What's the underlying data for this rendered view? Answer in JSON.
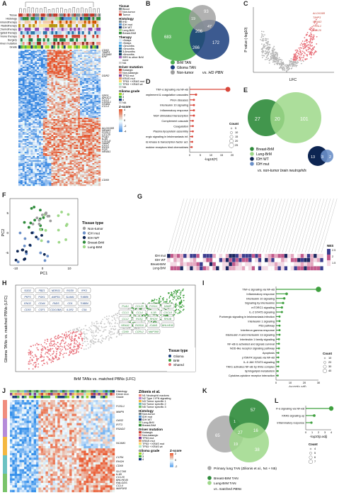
{
  "panels": {
    "A": "A",
    "B": "B",
    "C": "C",
    "D": "D",
    "E": "E",
    "F": "F",
    "G": "G",
    "H": "H",
    "I": "I",
    "J": "J",
    "K": "K",
    "L": "L"
  },
  "panelA": {
    "annotation_rows": [
      "Tissue",
      "Histology",
      "Immunotherapy",
      "Radiotherapy",
      "Chemotherapy",
      "Targeted therapy",
      "Hormone therapy",
      "Surgery",
      "Driver mutation",
      "Grade"
    ],
    "legend": {
      "tissue_title": "Tissue",
      "tissue": [
        "Blood",
        "Non-tumor",
        "Tumor"
      ],
      "histology_title": "Histology",
      "histology": [
        "IHD",
        "IDH mut",
        "IDH WT",
        "Lung-BrM",
        "Breast-BrM"
      ],
      "therapy_title": "Therapy",
      "therapy": [
        "<5days",
        ">5days",
        "<3months",
        ">3months",
        "3-6months",
        ">6months",
        "SRS to other BrM",
        "none",
        "NA"
      ],
      "driver_title": "Driver mutation",
      "driver": [
        "Kataegic",
        "Non-kataegic",
        "TP53 mut",
        "KRAS mut",
        "TP53 + KRAS mut",
        "TP53 + KRAS wt",
        "NA"
      ],
      "grade_title": "Glioma grade",
      "grade": [
        "2",
        "3",
        "4",
        "NA"
      ],
      "z_title": "Z-score",
      "z_ticks": [
        "4",
        "2",
        "0",
        "-2",
        "-4"
      ]
    },
    "genes": [
      "CD63",
      "TIMP3",
      "S100A8",
      "EHF",
      "DDR2",
      "SPP1",
      "APOC2",
      "CCL3",
      "CHI3L1",
      "STAB1",
      "CCL4",
      "ALOX15B",
      "NR4A3",
      "FOSL1",
      "CCL20",
      "PLAU",
      "IL1B",
      "CXCL8",
      "HAMP",
      "CCL2",
      "RGS1",
      "FOS",
      "NR4A1",
      "CD69"
    ]
  },
  "panelB": {
    "sets": [
      "BrM TAN",
      "Glioma TAN",
      "Non-tumor"
    ],
    "counts": {
      "brm_only": "683",
      "glioma_only": "172",
      "non_only": "93",
      "brm_non": "19",
      "non_glioma": "47",
      "brm_glioma": "266",
      "all": "206"
    },
    "caption": "vs. HD PBN"
  },
  "panelC": {
    "xlabel": "LFC",
    "ylabel": "P value (-log10)",
    "genes": [
      "ALOX15B",
      "TIMP3",
      "NR4A3",
      "FOSL1",
      "CCL20"
    ]
  },
  "panelD": {
    "terms": [
      "TNF-α signaling via NF-κB",
      "Complement & coagulation cascades",
      "Prion diseases",
      "Interleukin 10 signaling",
      "Inflammatory response",
      "NGF stimulated transcription",
      "Complement cascade",
      "Coagulation",
      "Plasma lipoprotein assembly",
      "Purinergic signaling in leishmaniasis inf.",
      "Nucl. events kinase & transcription factor act.",
      "Chemokine receptors bind chemokines"
    ],
    "values": [
      18,
      3,
      2,
      2,
      2,
      2,
      1.5,
      1.5,
      1.5,
      1.2,
      1.2,
      1
    ],
    "xlabel": "-log10(P)",
    "xticks": [
      "0",
      "5",
      "10",
      "15",
      "20"
    ],
    "count_title": "Count",
    "count_ticks": [
      "5",
      "10",
      "15",
      "20",
      "25"
    ]
  },
  "panelE": {
    "counts": {
      "breast": "27",
      "shared": "20",
      "lung": "101",
      "idhwt_only": "13",
      "both_idh": "3",
      "idhmut": "2"
    },
    "legend": [
      "Breast-BrM",
      "Lung-BrM",
      "IDH WT",
      "IDH mut"
    ],
    "caption": "vs. non-tumor brain neutrophils"
  },
  "panelF": {
    "xlabel": "PC1",
    "ylabel": "PC2",
    "xticks": [
      "-10",
      "0",
      "10"
    ],
    "yticks": [
      "5",
      "0",
      "-5"
    ],
    "legend_title": "Tissue type",
    "legend": [
      "Non-tumor",
      "IDH mut",
      "IDH WT",
      "Breast-BrM",
      "Lung-BrM"
    ]
  },
  "panelG": {
    "rows": [
      "IDH mut",
      "IDH WT",
      "Breast-BrM",
      "Lung-BrM"
    ],
    "nes_title": "NES",
    "nes_ticks": [
      "2.5",
      "2",
      "1.5"
    ]
  },
  "panelH": {
    "xlabel": "BrM TANs vs. matched PBNs (LFC)",
    "ylabel": "Glioma TANs vs. matched PBNs (LFC)",
    "left_genes": [
      "SOD2",
      "FBZ1",
      "NDRG1",
      "RGS9",
      "IPK3",
      "PKP3",
      "PGK1",
      "AMPD1",
      "SLAM1",
      "TUBB6",
      "ENO2",
      "CD44",
      "FADS",
      "CD1",
      "TUBB4",
      "CD53",
      "CSF1",
      "CDCOBA",
      "IL1R2",
      "C5A"
    ],
    "right_genes": [
      "PLAU",
      "CCL20",
      "FOSL1",
      "HAMP",
      "CCL3",
      "CCL4",
      "IL1B",
      "CXCL8",
      "CCL2",
      "RGS1",
      "RHOH",
      "RHOB",
      "NR4A2",
      "RGS16",
      "ICAM1",
      "BHLHE40",
      "CD69",
      "CCRL2",
      "MAP3K8"
    ],
    "legend_title": "Tissue type",
    "legend": [
      "Glioma",
      "BrM",
      "Shared"
    ]
  },
  "panelI": {
    "terms": [
      "TNF-α signaling via NF-κB",
      "Inflammatory response",
      "Interleukin 10 signaling",
      "Signaling by interleukins",
      "mTORC1 signaling",
      "IL-2 STAT5 signaling",
      "Purinergic signaling in leishmaniasis infection",
      "Interleukin 1 signaling",
      "P53 pathway",
      "Interferon gamma response",
      "Interleukin 4 and interleukin 13 signaling",
      "Interleukin 1 family signaling",
      "NF-κB is activated and signals survival",
      "NOD-like receptor signaling pathway",
      "Apoptosis",
      "p75NTR signals via NF-κB",
      "IL-6 JAK STAT3 signaling",
      "TAK1 activates NF-κB by IKKα complex",
      "Sphingolipid metabolism",
      "Cytokine-cytokine receptor interaction"
    ],
    "values": [
      36,
      9,
      7,
      6,
      5,
      5,
      3,
      3,
      3,
      3,
      3,
      2.5,
      2.5,
      2.5,
      2,
      2,
      2,
      2,
      1.5,
      1.5
    ],
    "xlabel": "-log10(p.adj)",
    "xticks": [
      "0",
      "10",
      "20",
      "30"
    ],
    "count_title": "Count",
    "count_ticks": [
      "10",
      "20",
      "30",
      "40"
    ]
  },
  "panelJ": {
    "source": "Zilionis et al.",
    "zilionis": [
      "N1 Neutrophil markers",
      "N2 Type 1 IFN signaling",
      "N3 Tumor specific 1",
      "N4 Tumor specific 2",
      "N5 Tumor specific 3"
    ],
    "row_labels": [
      "Histology",
      "Driver mut.",
      "Grade"
    ],
    "histology_title": "Histology",
    "histology": [
      "Non-tumor",
      "IDH mut",
      "IDH WT",
      "Lung-BrM",
      "Breast-BrM"
    ],
    "driver_title": "Driver mutation",
    "driver": [
      "Kataegic",
      "Non-kataegic",
      "TP53 mut",
      "KRAS mut",
      "TP53 + KRAS mut",
      "TP53 + KRAS wt"
    ],
    "grade_title": "Glioma grade",
    "grade": [
      "2",
      "3",
      "4"
    ],
    "z_title": "Z-score",
    "z_ticks": [
      "2",
      "0",
      "-2"
    ],
    "genes": [
      "FOSL1",
      "MMP9",
      "OAS2",
      "IFIT3",
      "RSAD2",
      "NCAM1",
      "CCR4",
      "RHOH",
      "CD69",
      "SLC7A5",
      "IL1B",
      "CCL20",
      "BHLHE40",
      "RALGDS",
      "CCL4",
      "MAP3K8"
    ]
  },
  "panelK": {
    "counts": {
      "primary_only": "65",
      "breast_only": "57",
      "lung_only": "38",
      "primary_breast": "1",
      "breast_lung": "16",
      "primary_lung": "19",
      "all": "27"
    },
    "legend": [
      "Primary lung TAN (Zilionis et al., N4 + N5)",
      "Breast-BrM TAN",
      "Lung-BrM TAN"
    ],
    "caption": "vs. matched PBNs"
  },
  "panelL": {
    "terms": [
      "TNF-α signaling via NF-κB",
      "KRAS signaling up",
      "Inflammatory response"
    ],
    "values": [
      4.5,
      1.5,
      1
    ],
    "xlabel": "-log10(p.adj)",
    "xticks": [
      "0",
      "1",
      "2",
      "3",
      "4"
    ],
    "count_title": "Count",
    "count_ticks": [
      "4",
      "5",
      "6",
      "7"
    ]
  }
}
